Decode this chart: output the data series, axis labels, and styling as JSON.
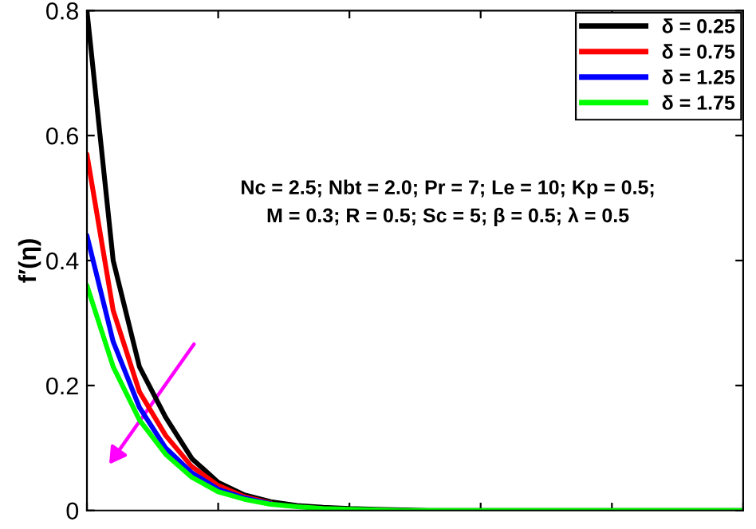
{
  "chart_data": {
    "type": "line",
    "ylabel": "f′(η)",
    "categories": [
      null,
      null,
      null,
      null,
      null,
      null,
      null,
      null,
      null,
      null,
      null,
      null,
      null,
      null,
      null,
      null,
      null,
      null,
      null,
      null,
      null,
      null,
      null,
      null,
      null,
      null
    ],
    "series": [
      {
        "name": "δ = 0.25",
        "color": "#000000",
        "values": [
          0.8,
          0.4,
          0.23,
          0.149,
          0.083,
          0.045,
          0.025,
          0.014,
          0.008,
          0.005,
          0.003,
          0.002,
          0.001,
          0,
          0,
          0,
          0,
          0,
          0,
          0,
          0,
          0,
          0,
          0,
          0,
          0
        ]
      },
      {
        "name": "δ = 0.75",
        "color": "#ff0000",
        "values": [
          0.57,
          0.32,
          0.19,
          0.12,
          0.07,
          0.04,
          0.022,
          0.012,
          null,
          null,
          null,
          null,
          null,
          null,
          null,
          null,
          null,
          null,
          null,
          null,
          null,
          null,
          null,
          null,
          null,
          null
        ]
      },
      {
        "name": "δ = 1.25",
        "color": "#0000ff",
        "values": [
          0.44,
          0.27,
          0.165,
          0.1,
          0.06,
          0.034,
          0.02,
          0.011,
          null,
          null,
          null,
          null,
          null,
          null,
          null,
          null,
          null,
          null,
          null,
          null,
          null,
          null,
          null,
          null,
          null,
          null
        ]
      },
      {
        "name": "δ = 1.75",
        "color": "#00ff00",
        "values": [
          0.36,
          0.23,
          0.145,
          0.09,
          0.053,
          0.03,
          0.018,
          0.01,
          0.006,
          0.003,
          0.002,
          0.001,
          0,
          0,
          0,
          0,
          0,
          0,
          0,
          0,
          0,
          0,
          0,
          0,
          0,
          0
        ]
      }
    ],
    "ylim": [
      0,
      0.8
    ],
    "yticks": [
      0,
      0.2,
      0.4,
      0.6,
      0.8
    ],
    "tick_labels": "y",
    "legend": "top right",
    "line_style": "solid",
    "annotations": [
      "Nc = 2.5; Nbt = 2.0; Pr = 7; Le = 10; Kp = 0.5;\nM = 0.3; R = 0.5; Sc = 5; β = 0.5; λ = 0.5"
    ]
  }
}
